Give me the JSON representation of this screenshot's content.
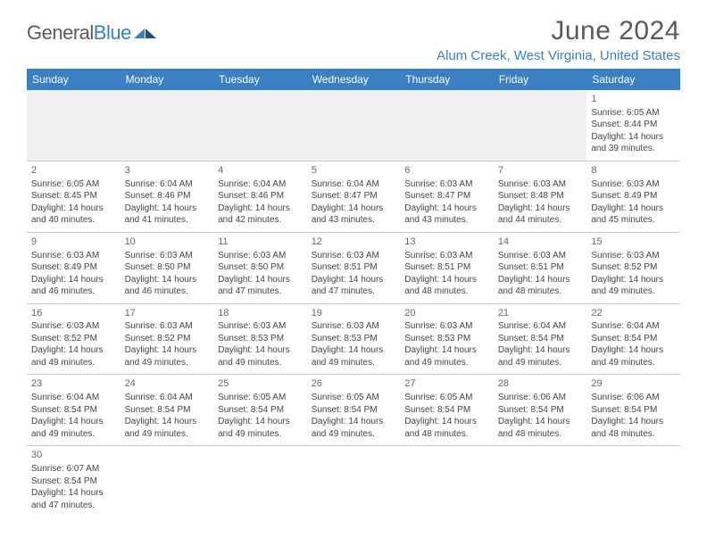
{
  "logo": {
    "g": "General",
    "b": "Blue"
  },
  "title": "June 2024",
  "location": "Alum Creek, West Virginia, United States",
  "colors": {
    "brand": "#3b7fc4",
    "text": "#5a5a5a",
    "cellText": "#444",
    "rowBorder": "#b9cde3",
    "headerBg": "#3b7fc4",
    "week1bg": "#f0f0f0"
  },
  "weekdays": [
    "Sunday",
    "Monday",
    "Tuesday",
    "Wednesday",
    "Thursday",
    "Friday",
    "Saturday"
  ],
  "weeks": [
    [
      null,
      null,
      null,
      null,
      null,
      null,
      {
        "n": "1",
        "sr": "6:05 AM",
        "ss": "8:44 PM",
        "dl": "14 hours and 39 minutes."
      }
    ],
    [
      {
        "n": "2",
        "sr": "6:05 AM",
        "ss": "8:45 PM",
        "dl": "14 hours and 40 minutes."
      },
      {
        "n": "3",
        "sr": "6:04 AM",
        "ss": "8:46 PM",
        "dl": "14 hours and 41 minutes."
      },
      {
        "n": "4",
        "sr": "6:04 AM",
        "ss": "8:46 PM",
        "dl": "14 hours and 42 minutes."
      },
      {
        "n": "5",
        "sr": "6:04 AM",
        "ss": "8:47 PM",
        "dl": "14 hours and 43 minutes."
      },
      {
        "n": "6",
        "sr": "6:03 AM",
        "ss": "8:47 PM",
        "dl": "14 hours and 43 minutes."
      },
      {
        "n": "7",
        "sr": "6:03 AM",
        "ss": "8:48 PM",
        "dl": "14 hours and 44 minutes."
      },
      {
        "n": "8",
        "sr": "6:03 AM",
        "ss": "8:49 PM",
        "dl": "14 hours and 45 minutes."
      }
    ],
    [
      {
        "n": "9",
        "sr": "6:03 AM",
        "ss": "8:49 PM",
        "dl": "14 hours and 46 minutes."
      },
      {
        "n": "10",
        "sr": "6:03 AM",
        "ss": "8:50 PM",
        "dl": "14 hours and 46 minutes."
      },
      {
        "n": "11",
        "sr": "6:03 AM",
        "ss": "8:50 PM",
        "dl": "14 hours and 47 minutes."
      },
      {
        "n": "12",
        "sr": "6:03 AM",
        "ss": "8:51 PM",
        "dl": "14 hours and 47 minutes."
      },
      {
        "n": "13",
        "sr": "6:03 AM",
        "ss": "8:51 PM",
        "dl": "14 hours and 48 minutes."
      },
      {
        "n": "14",
        "sr": "6:03 AM",
        "ss": "8:51 PM",
        "dl": "14 hours and 48 minutes."
      },
      {
        "n": "15",
        "sr": "6:03 AM",
        "ss": "8:52 PM",
        "dl": "14 hours and 49 minutes."
      }
    ],
    [
      {
        "n": "16",
        "sr": "6:03 AM",
        "ss": "8:52 PM",
        "dl": "14 hours and 49 minutes."
      },
      {
        "n": "17",
        "sr": "6:03 AM",
        "ss": "8:52 PM",
        "dl": "14 hours and 49 minutes."
      },
      {
        "n": "18",
        "sr": "6:03 AM",
        "ss": "8:53 PM",
        "dl": "14 hours and 49 minutes."
      },
      {
        "n": "19",
        "sr": "6:03 AM",
        "ss": "8:53 PM",
        "dl": "14 hours and 49 minutes."
      },
      {
        "n": "20",
        "sr": "6:03 AM",
        "ss": "8:53 PM",
        "dl": "14 hours and 49 minutes."
      },
      {
        "n": "21",
        "sr": "6:04 AM",
        "ss": "8:54 PM",
        "dl": "14 hours and 49 minutes."
      },
      {
        "n": "22",
        "sr": "6:04 AM",
        "ss": "8:54 PM",
        "dl": "14 hours and 49 minutes."
      }
    ],
    [
      {
        "n": "23",
        "sr": "6:04 AM",
        "ss": "8:54 PM",
        "dl": "14 hours and 49 minutes."
      },
      {
        "n": "24",
        "sr": "6:04 AM",
        "ss": "8:54 PM",
        "dl": "14 hours and 49 minutes."
      },
      {
        "n": "25",
        "sr": "6:05 AM",
        "ss": "8:54 PM",
        "dl": "14 hours and 49 minutes."
      },
      {
        "n": "26",
        "sr": "6:05 AM",
        "ss": "8:54 PM",
        "dl": "14 hours and 49 minutes."
      },
      {
        "n": "27",
        "sr": "6:05 AM",
        "ss": "8:54 PM",
        "dl": "14 hours and 48 minutes."
      },
      {
        "n": "28",
        "sr": "6:06 AM",
        "ss": "8:54 PM",
        "dl": "14 hours and 48 minutes."
      },
      {
        "n": "29",
        "sr": "6:06 AM",
        "ss": "8:54 PM",
        "dl": "14 hours and 48 minutes."
      }
    ],
    [
      {
        "n": "30",
        "sr": "6:07 AM",
        "ss": "8:54 PM",
        "dl": "14 hours and 47 minutes."
      },
      null,
      null,
      null,
      null,
      null,
      null
    ]
  ],
  "labels": {
    "sunrise": "Sunrise:",
    "sunset": "Sunset:",
    "daylight": "Daylight:"
  }
}
